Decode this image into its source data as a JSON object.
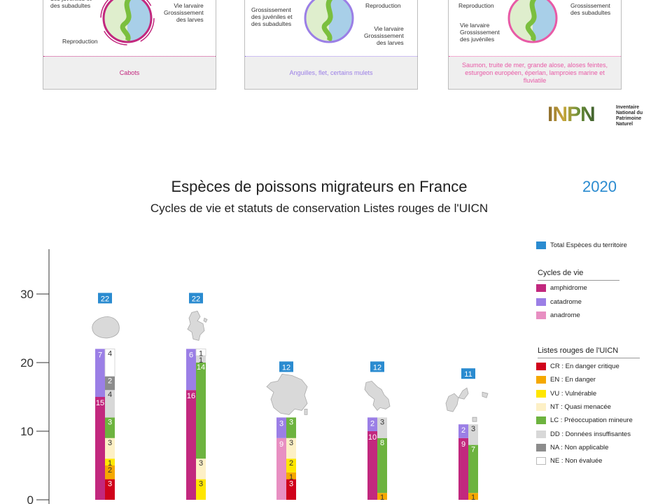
{
  "cards": [
    {
      "labels": [
        "Grossissement\ndes juvéniles et\ndes subadultes",
        "Vie larvaire\nGrossissement\ndes larves",
        "Reproduction"
      ],
      "footer": "Cabots",
      "accent": "#c2287e"
    },
    {
      "labels": [
        "Grossissement\ndes juvéniles et\ndes subadultes",
        "Reproduction",
        "Vie larvaire\nGrossissement\ndes larves"
      ],
      "footer": "Anguilles, flet, certains mulets",
      "accent": "#9b7fe6"
    },
    {
      "labels": [
        "Reproduction",
        "Vie larvaire\nGrossissement\ndes juvéniles",
        "Grossissement\ndes subadultes"
      ],
      "footer": "Saumon, truite de mer, grande alose, aloses feintes, esturgeon européen, éperlan, lamproies marine et fluviatile",
      "accent": "#e85aa6"
    }
  ],
  "logo": {
    "word": "INPN",
    "text": "Inventaire\nNational du\nPatrimoine\nNaturel"
  },
  "header": {
    "title": "Espèces de poissons migrateurs en France",
    "subtitle": "Cycles de vie et statuts de conservation Listes rouges de l'UICN",
    "year": "2020"
  },
  "legend": {
    "total": {
      "label": "Total Espèces du territoire",
      "color": "#2a8bd0"
    },
    "cycles_title": "Cycles de vie",
    "cycles": [
      {
        "label": "amphidrome",
        "color": "#c2287e"
      },
      {
        "label": "catadrome",
        "color": "#9b7fe6"
      },
      {
        "label": "anadrome",
        "color": "#e88fc2"
      }
    ],
    "status_title": "Listes rouges de l'UICN",
    "statuses": [
      {
        "code": "CR",
        "label": "CR : En danger critique",
        "color": "#d0021b"
      },
      {
        "code": "EN",
        "label": "EN : En danger",
        "color": "#f5a800"
      },
      {
        "code": "VU",
        "label": "VU : Vulnérable",
        "color": "#ffe600"
      },
      {
        "code": "NT",
        "label": "NT : Quasi menacée",
        "color": "#fdf0c6"
      },
      {
        "code": "LC",
        "label": "LC : Préoccupation mineure",
        "color": "#6db33f"
      },
      {
        "code": "DD",
        "label": "DD : Données insuffisantes",
        "color": "#d8d8d8"
      },
      {
        "code": "NA",
        "label": "NA : Non applicable",
        "color": "#8c8c8c"
      },
      {
        "code": "NE",
        "label": "NE : Non évaluée",
        "color": "#ffffff"
      }
    ]
  },
  "chart_data": {
    "type": "bar",
    "ylim": [
      0,
      35
    ],
    "yticks": [
      0,
      10,
      20,
      30
    ],
    "territories": [
      {
        "map_icon": "reunion-map-icon",
        "total": 22,
        "cycles": [
          {
            "type": "amphidrome",
            "value": 15
          },
          {
            "type": "catadrome",
            "value": 7
          }
        ],
        "statuses": [
          {
            "code": "CR",
            "value": 3
          },
          {
            "code": "EN",
            "value": 2
          },
          {
            "code": "VU",
            "value": 1
          },
          {
            "code": "NT",
            "value": 3
          },
          {
            "code": "LC",
            "value": 3
          },
          {
            "code": "DD",
            "value": 4
          },
          {
            "code": "NA",
            "value": 2
          },
          {
            "code": "NE",
            "value": 4
          }
        ]
      },
      {
        "map_icon": "mayotte-map-icon",
        "total": 22,
        "cycles": [
          {
            "type": "amphidrome",
            "value": 16
          },
          {
            "type": "catadrome",
            "value": 6
          }
        ],
        "statuses": [
          {
            "code": "VU",
            "value": 3
          },
          {
            "code": "NT",
            "value": 3
          },
          {
            "code": "LC",
            "value": 14
          },
          {
            "code": "DD",
            "value": 1
          },
          {
            "code": "NE",
            "value": 1
          }
        ]
      },
      {
        "map_icon": "france-map-icon",
        "total": 12,
        "cycles": [
          {
            "type": "anadrome",
            "value": 9
          },
          {
            "type": "catadrome",
            "value": 3
          }
        ],
        "statuses": [
          {
            "code": "CR",
            "value": 3
          },
          {
            "code": "EN",
            "value": 1
          },
          {
            "code": "VU",
            "value": 2
          },
          {
            "code": "NT",
            "value": 3
          },
          {
            "code": "LC",
            "value": 3
          }
        ]
      },
      {
        "map_icon": "martinique-map-icon",
        "total": 12,
        "cycles": [
          {
            "type": "amphidrome",
            "value": 10
          },
          {
            "type": "catadrome",
            "value": 2
          }
        ],
        "statuses": [
          {
            "code": "EN",
            "value": 1
          },
          {
            "code": "LC",
            "value": 8
          },
          {
            "code": "DD",
            "value": 3
          }
        ]
      },
      {
        "map_icon": "guadeloupe-map-icon",
        "total": 11,
        "cycles": [
          {
            "type": "amphidrome",
            "value": 9
          },
          {
            "type": "catadrome",
            "value": 2
          }
        ],
        "statuses": [
          {
            "code": "EN",
            "value": 1
          },
          {
            "code": "LC",
            "value": 7
          },
          {
            "code": "DD",
            "value": 3
          }
        ]
      }
    ]
  }
}
